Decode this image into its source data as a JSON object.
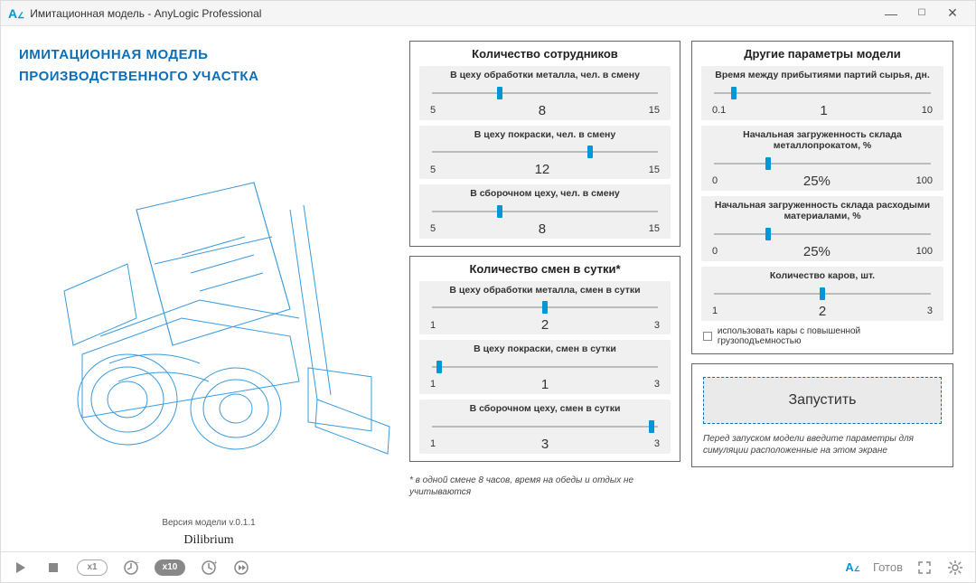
{
  "titlebar": {
    "text": "Имитационная модель - AnyLogic Professional"
  },
  "left": {
    "title_line1": "ИМИТАЦИОННАЯ МОДЕЛЬ",
    "title_line2": "ПРОИЗВОДСТВЕННОГО УЧАСТКА",
    "version_text": "Версия модели v.0.1.1",
    "brand_text": "Dilibrium"
  },
  "panel_workers": {
    "title": "Количество сотрудников",
    "sliders": [
      {
        "label": "В цеху обработки металла, чел. в смену",
        "min": "5",
        "max": "15",
        "value": "8",
        "thumb_pct": 30
      },
      {
        "label": "В цеху покраски, чел. в смену",
        "min": "5",
        "max": "15",
        "value": "12",
        "thumb_pct": 70
      },
      {
        "label": "В сборочном цеху, чел. в смену",
        "min": "5",
        "max": "15",
        "value": "8",
        "thumb_pct": 30
      }
    ]
  },
  "panel_shifts": {
    "title": "Количество смен в сутки*",
    "sliders": [
      {
        "label": "В цеху обработки металла, смен в сутки",
        "min": "1",
        "max": "3",
        "value": "2",
        "thumb_pct": 50
      },
      {
        "label": "В цеху покраски, смен в сутки",
        "min": "1",
        "max": "3",
        "value": "1",
        "thumb_pct": 3
      },
      {
        "label": "В сборочном цеху, смен в сутки",
        "min": "1",
        "max": "3",
        "value": "3",
        "thumb_pct": 97
      }
    ],
    "footnote": "* в одной смене 8 часов, время на обеды и отдых не учитываются"
  },
  "panel_other": {
    "title": "Другие параметры модели",
    "sliders": [
      {
        "label": "Время между прибытиями партий сырья, дн.",
        "min": "0.1",
        "max": "10",
        "value": "1",
        "thumb_pct": 9
      },
      {
        "label": "Начальная загруженность склада металлопрокатом, %",
        "min": "0",
        "max": "100",
        "value": "25%",
        "thumb_pct": 25
      },
      {
        "label": "Начальная загруженность склада расходыми материалами, %",
        "min": "0",
        "max": "100",
        "value": "25%",
        "thumb_pct": 25
      },
      {
        "label": "Количество каров, шт.",
        "min": "1",
        "max": "3",
        "value": "2",
        "thumb_pct": 50
      }
    ],
    "checkbox_label": "использовать кары с повышенной грузоподъемностью",
    "checkbox_checked": false
  },
  "launch": {
    "button_text": "Запустить",
    "hint_text": "Перед запуском модели введите параметры для симуляции расположенные на этом экране"
  },
  "playbar": {
    "speed_off_label": "x1",
    "speed_on_label": "x10",
    "status_text": "Готов"
  },
  "colors": {
    "accent_blue": "#0097d6",
    "title_blue": "#0d6fb8",
    "panel_border": "#666666",
    "slider_bg": "#f0f0f0",
    "grey_icon": "#888888"
  }
}
